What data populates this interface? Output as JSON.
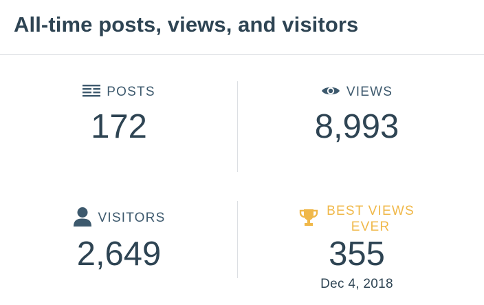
{
  "header": {
    "title": "All-time posts, views, and visitors"
  },
  "stats": {
    "posts": {
      "label": "POSTS",
      "value": "172",
      "icon": "posts-icon"
    },
    "views": {
      "label": "VIEWS",
      "value": "8,993",
      "icon": "eye-icon"
    },
    "visitors": {
      "label": "VISITORS",
      "value": "2,649",
      "icon": "person-icon"
    },
    "best": {
      "label_line1": "BEST VIEWS",
      "label_line2": "EVER",
      "value": "355",
      "date": "Dec 4, 2018",
      "icon": "trophy-icon"
    }
  },
  "colors": {
    "text": "#2e4453",
    "label": "#3d596d",
    "accent": "#f0b849",
    "divider": "#dcdfe3"
  }
}
